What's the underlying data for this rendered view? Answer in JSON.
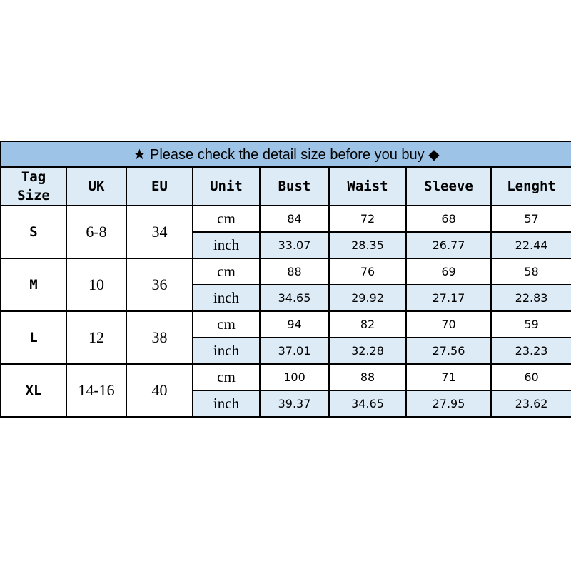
{
  "title": "★ Please check the detail size before you buy ◆",
  "headers": [
    "Tag\nSize",
    "UK",
    "EU",
    "Unit",
    "Bust",
    "Waist",
    "Sleeve",
    "Lenght"
  ],
  "rows": [
    {
      "tag": "S",
      "uk": "6-8",
      "eu": "34",
      "cm": {
        "unit": "cm",
        "values": [
          "84",
          "72",
          "68",
          "57"
        ]
      },
      "inch": {
        "unit": "inch",
        "values": [
          "33.07",
          "28.35",
          "26.77",
          "22.44"
        ]
      }
    },
    {
      "tag": "M",
      "uk": "10",
      "eu": "36",
      "cm": {
        "unit": "cm",
        "values": [
          "88",
          "76",
          "69",
          "58"
        ]
      },
      "inch": {
        "unit": "inch",
        "values": [
          "34.65",
          "29.92",
          "27.17",
          "22.83"
        ]
      }
    },
    {
      "tag": "L",
      "uk": "12",
      "eu": "38",
      "cm": {
        "unit": "cm",
        "values": [
          "94",
          "82",
          "70",
          "59"
        ]
      },
      "inch": {
        "unit": "inch",
        "values": [
          "37.01",
          "32.28",
          "27.56",
          "23.23"
        ]
      }
    },
    {
      "tag": "XL",
      "uk": "14-16",
      "eu": "40",
      "cm": {
        "unit": "cm",
        "values": [
          "100",
          "88",
          "71",
          "60"
        ]
      },
      "inch": {
        "unit": "inch",
        "values": [
          "39.37",
          "34.65",
          "27.95",
          "23.62"
        ]
      }
    }
  ],
  "colors": {
    "title_bg": "#9dc3e6",
    "header_bg": "#ddebf7"
  }
}
